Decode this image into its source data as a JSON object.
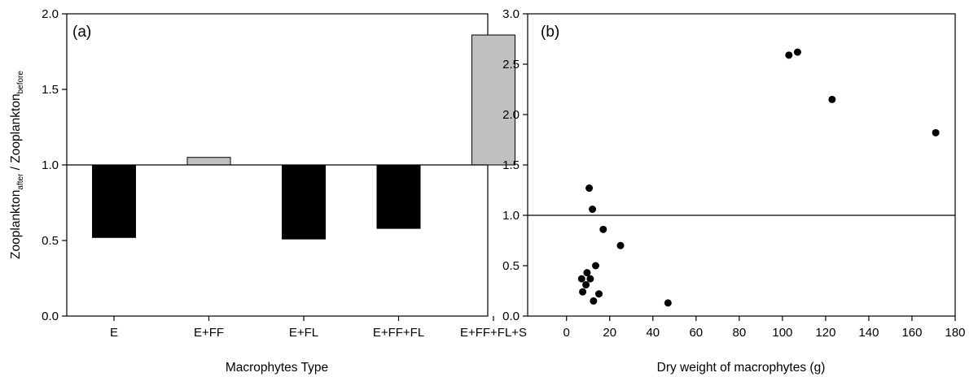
{
  "chart_data": [
    {
      "type": "bar",
      "panel_label": "(a)",
      "xlabel": "Macrophytes Type",
      "ylabel": {
        "parts": [
          {
            "text": "Zooplankton",
            "sub": false
          },
          {
            "text": "after",
            "sub": true
          },
          {
            "text": " / Zooplankton",
            "sub": false
          },
          {
            "text": "before",
            "sub": true
          }
        ]
      },
      "categories": [
        "E",
        "E+FF",
        "E+FL",
        "E+FF+FL",
        "E+FF+FL+S"
      ],
      "values": [
        0.52,
        1.05,
        0.51,
        0.58,
        1.86
      ],
      "baseline": 1.0,
      "ylim": [
        0,
        2.0
      ],
      "yticks": [
        "0.0",
        "0.5",
        "1.0",
        "1.5",
        "2.0"
      ],
      "bar_colors": {
        "below_baseline": "#000000",
        "above_baseline": "#c0c0c0"
      }
    },
    {
      "type": "scatter",
      "panel_label": "(b)",
      "xlabel": "Dry weight of macrophytes (g)",
      "ylabel": "",
      "x": [
        7,
        7.5,
        9,
        9.5,
        10.5,
        11,
        12,
        12.5,
        13.5,
        15,
        17,
        25,
        47,
        103,
        107,
        123,
        171
      ],
      "y": [
        0.37,
        0.24,
        0.31,
        0.43,
        1.27,
        0.37,
        1.06,
        0.15,
        0.5,
        0.22,
        0.86,
        0.7,
        0.13,
        2.59,
        2.62,
        2.15,
        1.82
      ],
      "reference_line": 1.0,
      "xlim": [
        -18,
        180
      ],
      "ylim": [
        0,
        3.0
      ],
      "xticks": [
        "0",
        "20",
        "40",
        "60",
        "80",
        "100",
        "120",
        "140",
        "160",
        "180"
      ],
      "yticks": [
        "0.0",
        "0.5",
        "1.0",
        "1.5",
        "2.0",
        "2.5",
        "3.0"
      ],
      "marker_color": "#000000"
    }
  ]
}
